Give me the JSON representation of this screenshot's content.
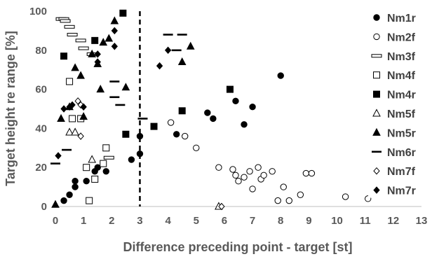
{
  "chart_data": {
    "type": "scatter",
    "xlabel": "Difference preceding point - target [st]",
    "ylabel": "Target height re range [%]",
    "xlim": [
      0,
      13
    ],
    "ylim": [
      0,
      100
    ],
    "xticks": [
      "0",
      "1",
      "2",
      "3",
      "4",
      "5",
      "6",
      "7",
      "8",
      "9",
      "10",
      "11",
      "12",
      "13"
    ],
    "yticks": [
      "0",
      "20",
      "40",
      "60",
      "80",
      "100"
    ],
    "grid": false,
    "legend_position": "right",
    "reference_line": {
      "x": 3,
      "style": "dashed"
    },
    "series": [
      {
        "name": "Nm1r",
        "marker": "circle-filled",
        "points": [
          [
            0.3,
            3
          ],
          [
            0.5,
            6
          ],
          [
            0.7,
            10
          ],
          [
            0.7,
            13
          ],
          [
            1.1,
            13
          ],
          [
            1.4,
            18
          ],
          [
            1.5,
            20
          ],
          [
            1.8,
            18
          ],
          [
            2.7,
            24
          ],
          [
            3.0,
            27
          ],
          [
            3.0,
            36
          ],
          [
            4.3,
            37
          ],
          [
            5.4,
            48
          ],
          [
            5.6,
            45
          ],
          [
            6.4,
            54
          ],
          [
            6.7,
            42
          ],
          [
            7.0,
            51
          ],
          [
            8.0,
            67
          ]
        ]
      },
      {
        "name": "Nm2f",
        "marker": "circle-open",
        "points": [
          [
            4.1,
            43
          ],
          [
            4.6,
            36
          ],
          [
            5.0,
            30
          ],
          [
            5.8,
            20
          ],
          [
            6.3,
            19
          ],
          [
            6.4,
            16
          ],
          [
            6.5,
            13
          ],
          [
            6.7,
            15
          ],
          [
            6.9,
            18
          ],
          [
            7.0,
            9
          ],
          [
            7.2,
            20
          ],
          [
            7.3,
            14
          ],
          [
            7.4,
            16
          ],
          [
            7.7,
            18
          ],
          [
            7.9,
            3
          ],
          [
            8.1,
            10
          ],
          [
            8.3,
            3
          ],
          [
            8.7,
            6
          ],
          [
            8.9,
            17
          ],
          [
            9.1,
            17
          ],
          [
            10.3,
            5
          ],
          [
            11.1,
            4
          ]
        ]
      },
      {
        "name": "Nm3f",
        "marker": "dash-open",
        "points": [
          [
            0.2,
            96
          ],
          [
            0.3,
            96
          ],
          [
            0.35,
            95
          ],
          [
            0.5,
            92
          ],
          [
            0.6,
            88
          ],
          [
            0.9,
            85
          ],
          [
            1.0,
            81
          ],
          [
            1.3,
            78
          ],
          [
            1.9,
            25
          ]
        ]
      },
      {
        "name": "Nm4f",
        "marker": "square-open",
        "points": [
          [
            0.5,
            64
          ],
          [
            0.6,
            45
          ],
          [
            0.9,
            45
          ],
          [
            1.1,
            20
          ],
          [
            1.2,
            3
          ],
          [
            1.4,
            14
          ],
          [
            1.7,
            22
          ],
          [
            1.8,
            30
          ]
        ]
      },
      {
        "name": "Nm4r",
        "marker": "square-filled",
        "points": [
          [
            0.3,
            77
          ],
          [
            1.4,
            85
          ],
          [
            2.4,
            99
          ],
          [
            2.5,
            37
          ],
          [
            3.5,
            41
          ],
          [
            4.5,
            49
          ],
          [
            6.2,
            60
          ]
        ]
      },
      {
        "name": "Nm5f",
        "marker": "triangle-open",
        "points": [
          [
            0.5,
            38
          ],
          [
            0.7,
            38
          ],
          [
            1.3,
            24
          ],
          [
            5.8,
            0
          ]
        ]
      },
      {
        "name": "Nm5r",
        "marker": "triangle-filled",
        "points": [
          [
            0.0,
            1
          ],
          [
            0.2,
            45
          ],
          [
            0.5,
            51
          ],
          [
            0.7,
            71
          ],
          [
            0.9,
            67
          ],
          [
            1.0,
            46
          ],
          [
            1.3,
            78
          ],
          [
            1.5,
            73
          ],
          [
            1.6,
            60
          ],
          [
            1.7,
            84
          ],
          [
            1.9,
            86
          ],
          [
            2.1,
            95
          ],
          [
            2.5,
            61
          ],
          [
            4.5,
            74
          ],
          [
            4.8,
            82
          ]
        ]
      },
      {
        "name": "Nm6r",
        "marker": "dash-filled",
        "points": [
          [
            0.0,
            22
          ],
          [
            0.4,
            29
          ],
          [
            2.1,
            64
          ],
          [
            2.1,
            56
          ],
          [
            2.3,
            52
          ],
          [
            3.1,
            45
          ],
          [
            4.0,
            88
          ],
          [
            4.5,
            88
          ],
          [
            4.3,
            80
          ]
        ]
      },
      {
        "name": "Nm7f",
        "marker": "diamond-open",
        "points": [
          [
            0.8,
            54
          ],
          [
            0.9,
            52
          ],
          [
            0.9,
            36
          ],
          [
            5.9,
            0
          ]
        ]
      },
      {
        "name": "Nm7r",
        "marker": "diamond-filled",
        "points": [
          [
            0.1,
            26
          ],
          [
            0.3,
            50
          ],
          [
            0.5,
            51
          ],
          [
            0.6,
            52
          ],
          [
            1.0,
            51
          ],
          [
            1.5,
            74
          ],
          [
            1.5,
            78
          ],
          [
            2.1,
            82
          ],
          [
            2.1,
            90
          ],
          [
            3.7,
            72
          ],
          [
            4.0,
            80
          ]
        ]
      }
    ]
  }
}
